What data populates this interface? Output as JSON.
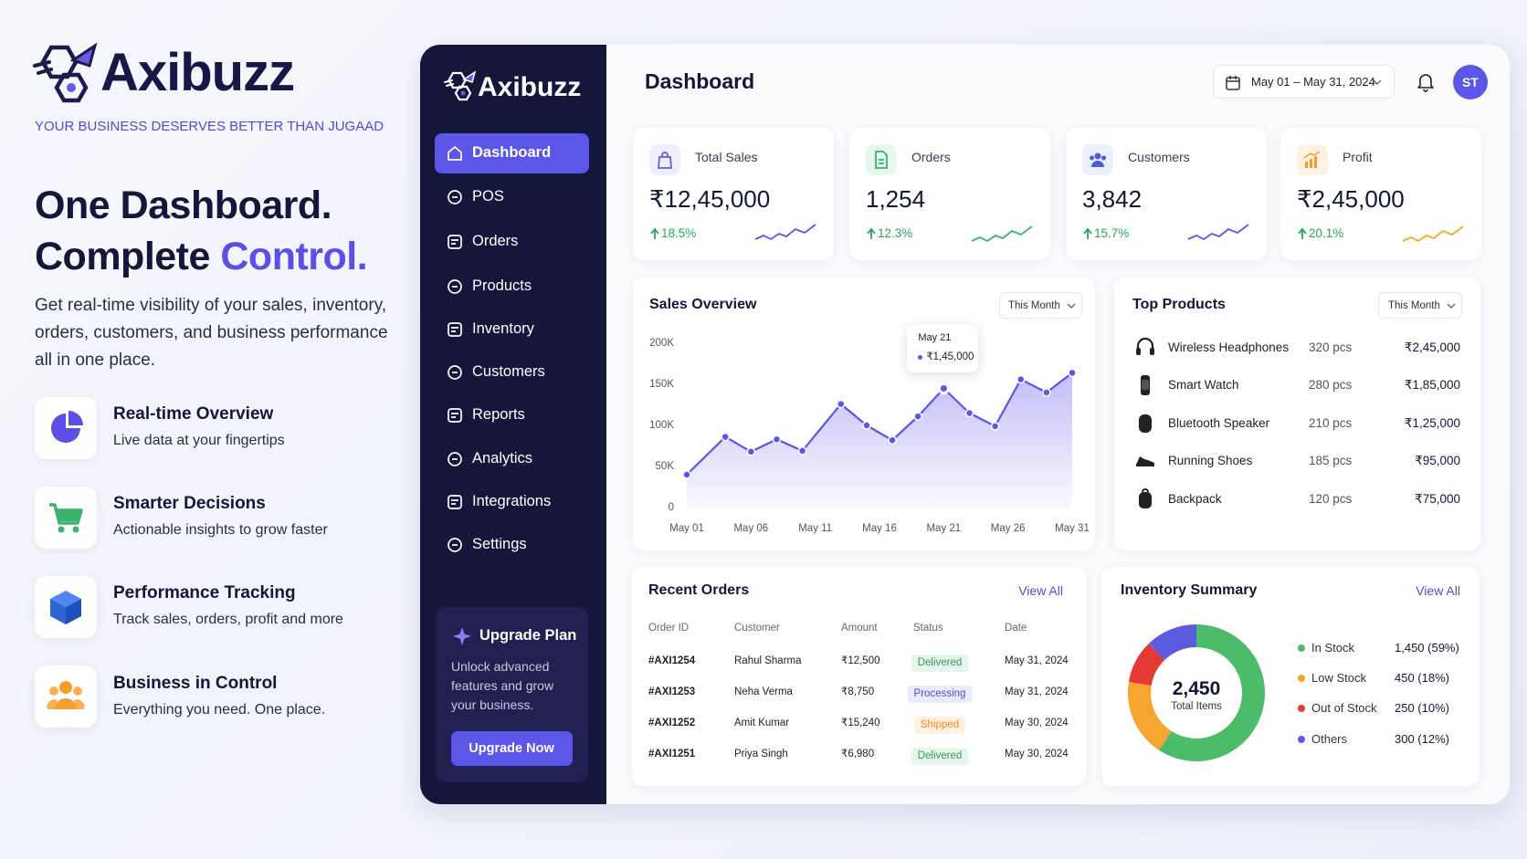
{
  "brand": {
    "name": "Axibuzz",
    "tagline": "YOUR BUSINESS DESERVES BETTER THAN JUGAAD"
  },
  "hero": {
    "headline_1": "One Dashboard.",
    "headline_2": "Complete",
    "headline_2_accent": "Control.",
    "description": "Get real-time visibility of your sales, inventory, orders, customers, and business performance all in one place."
  },
  "features": [
    {
      "title": "Real-time Overview",
      "subtitle": "Live data at your fingertips"
    },
    {
      "title": "Smarter Decisions",
      "subtitle": "Actionable insights to grow faster"
    },
    {
      "title": "Performance Tracking",
      "subtitle": "Track sales, orders, profit and more"
    },
    {
      "title": "Business in Control",
      "subtitle": "Everything you need. One place."
    }
  ],
  "sidebar": {
    "brand": "Axibuzz",
    "menu": [
      "Dashboard",
      "POS",
      "Orders",
      "Products",
      "Inventory",
      "Customers",
      "Reports",
      "Analytics",
      "Integrations",
      "Settings"
    ],
    "upgrade": {
      "title": "Upgrade Plan",
      "text": "Unlock advanced features and grow your business.",
      "button": "Upgrade Now"
    }
  },
  "header": {
    "title": "Dashboard",
    "date_range": "May 01 – May 31, 2024",
    "avatar": "ST"
  },
  "kpis": [
    {
      "label": "Total Sales",
      "value": "₹12,45,000",
      "change": "18.5%"
    },
    {
      "label": "Orders",
      "value": "1,254",
      "change": "12.3%"
    },
    {
      "label": "Customers",
      "value": "3,842",
      "change": "15.7%"
    },
    {
      "label": "Profit",
      "value": "₹2,45,000",
      "change": "20.1%"
    }
  ],
  "top_products": {
    "title": "Top Products",
    "filter": "This Month",
    "rows": [
      [
        "Wireless Headphones",
        "320 pcs",
        "₹2,45,000"
      ],
      [
        "Smart Watch",
        "280 pcs",
        "₹1,85,000"
      ],
      [
        "Bluetooth Speaker",
        "210 pcs",
        "₹1,25,000"
      ],
      [
        "Running Shoes",
        "185 pcs",
        "₹95,000"
      ],
      [
        "Backpack",
        "120 pcs",
        "₹75,000"
      ]
    ]
  },
  "recent_orders": {
    "title": "Recent Orders",
    "link": "View All",
    "columns": [
      "Order ID",
      "Customer",
      "Amount",
      "Status",
      "Date"
    ],
    "rows": [
      [
        "#AXI1254",
        "Rahul Sharma",
        "₹12,500",
        "Delivered",
        "May 31, 2024"
      ],
      [
        "#AXI1253",
        "Neha Verma",
        "₹8,750",
        "Processing",
        "May 31, 2024"
      ],
      [
        "#AXI1252",
        "Amit Kumar",
        "₹15,240",
        "Shipped",
        "May 30, 2024"
      ],
      [
        "#AXI1251",
        "Priya Singh",
        "₹6,980",
        "Delivered",
        "May 30, 2024"
      ]
    ]
  },
  "chart_data": [
    {
      "type": "line",
      "title": "Sales Overview",
      "filter": "This Month",
      "x": [
        1,
        4,
        6,
        8,
        10,
        13,
        15,
        17,
        19,
        21,
        23,
        25,
        27,
        29,
        31
      ],
      "xlim": [
        1,
        31
      ],
      "xticks": [
        {
          "value": 1,
          "label": "May 01"
        },
        {
          "value": 6,
          "label": "May 06"
        },
        {
          "value": 11,
          "label": "May 11"
        },
        {
          "value": 16,
          "label": "May 16"
        },
        {
          "value": 21,
          "label": "May 21"
        },
        {
          "value": 26,
          "label": "May 26"
        },
        {
          "value": 31,
          "label": "May 31"
        }
      ],
      "ylim": [
        0,
        200000
      ],
      "yticks": [
        0,
        {
          "value": 50000,
          "label": "50K"
        },
        {
          "value": 100000,
          "label": "100K"
        },
        {
          "value": 150000,
          "label": "150K"
        },
        {
          "value": 200000,
          "label": "200K"
        }
      ],
      "series": [
        {
          "color": "#5b55e8",
          "values": [
            40000,
            86000,
            68000,
            83000,
            69000,
            126000,
            100000,
            82000,
            111000,
            145000,
            115000,
            99000,
            156000,
            140000,
            164000
          ]
        }
      ],
      "tooltip": {
        "title": "May 21",
        "value": "₹1,45,000"
      }
    },
    {
      "type": "donut",
      "title": "Inventory Summary",
      "link": "View All",
      "center_value": "2,450",
      "center_label": "Total Items",
      "categories": [
        "In Stock",
        "Low Stock",
        "Out of Stock",
        "Others"
      ],
      "values": [
        1450,
        450,
        250,
        300
      ],
      "value_labels": [
        "1,450 (59%)",
        "450 (18%)",
        "250 (10%)",
        "300 (12%)"
      ],
      "colors": [
        "#4cbb6a",
        "#f7a531",
        "#e53935",
        "#5b5be0"
      ]
    }
  ]
}
